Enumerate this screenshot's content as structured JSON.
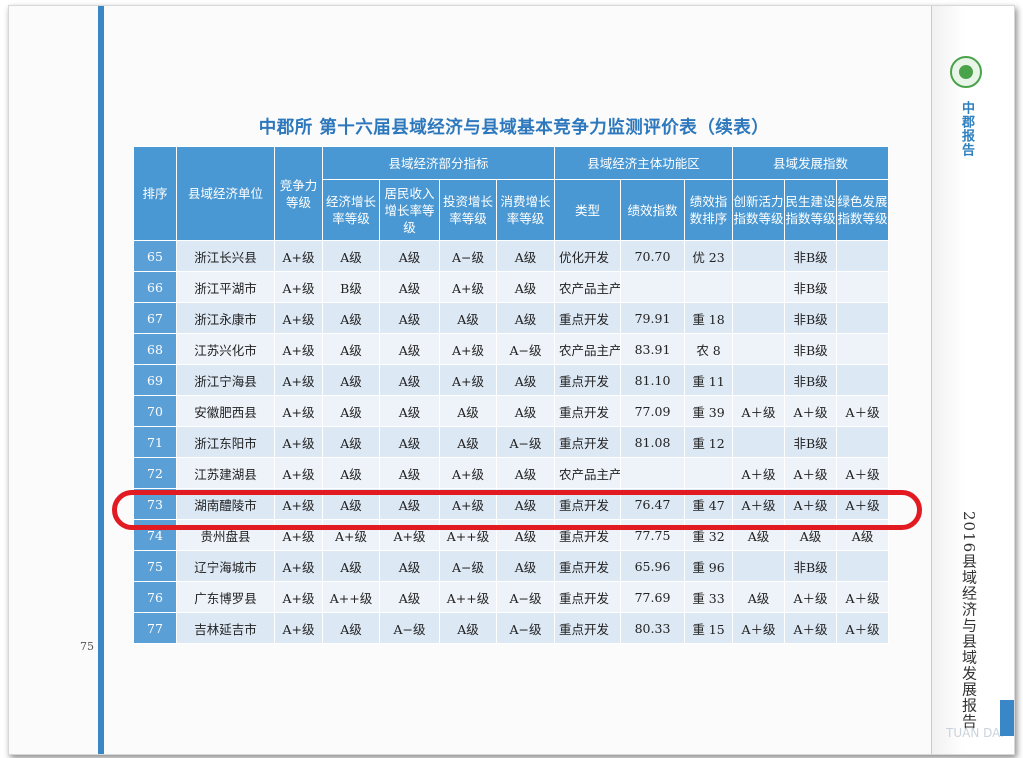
{
  "page_number": "75",
  "side_brand": "中郡报告",
  "side_title": "2016县域经济与县域发展报告",
  "watermark": "TUAN DAI",
  "title": "中郡所  第十六届县域经济与县域基本竞争力监测评价表（续表）",
  "headers": {
    "rank": "排序",
    "unit": "县域经济单位",
    "competitiveness": "竞争力等级",
    "group_economy": "县域经济部分指标",
    "group_function": "县域经济主体功能区",
    "group_development": "县域发展指数",
    "econ_growth": "经济增长率等级",
    "income_growth": "居民收入增长率等级",
    "invest_growth": "投资增长率等级",
    "consume_growth": "消费增长率等级",
    "type": "类型",
    "perf_index": "绩效指数",
    "perf_rank": "绩效指数排序",
    "innovation": "创新活力指数等级",
    "livelihood": "民生建设指数等级",
    "green": "绿色发展指数等级"
  },
  "rows": [
    {
      "rank": "65",
      "unit": "浙江长兴县",
      "comp": "A+级",
      "econ": "A级",
      "income": "A级",
      "invest": "A−级",
      "consume": "A级",
      "type": "优化开发",
      "perf": "70.70",
      "perf_rank": "优 23",
      "innov": "",
      "live": "非B级",
      "green": ""
    },
    {
      "rank": "66",
      "unit": "浙江平湖市",
      "comp": "A+级",
      "econ": "B级",
      "income": "A级",
      "invest": "A+级",
      "consume": "A级",
      "type": "农产品主产",
      "perf": "",
      "perf_rank": "",
      "innov": "",
      "live": "非B级",
      "green": ""
    },
    {
      "rank": "67",
      "unit": "浙江永康市",
      "comp": "A+级",
      "econ": "A级",
      "income": "A级",
      "invest": "A级",
      "consume": "A级",
      "type": "重点开发",
      "perf": "79.91",
      "perf_rank": "重 18",
      "innov": "",
      "live": "非B级",
      "green": ""
    },
    {
      "rank": "68",
      "unit": "江苏兴化市",
      "comp": "A+级",
      "econ": "A级",
      "income": "A级",
      "invest": "A+级",
      "consume": "A−级",
      "type": "农产品主产",
      "perf": "83.91",
      "perf_rank": "农 8",
      "innov": "",
      "live": "非B级",
      "green": ""
    },
    {
      "rank": "69",
      "unit": "浙江宁海县",
      "comp": "A+级",
      "econ": "A级",
      "income": "A级",
      "invest": "A+级",
      "consume": "A级",
      "type": "重点开发",
      "perf": "81.10",
      "perf_rank": "重 11",
      "innov": "",
      "live": "非B级",
      "green": ""
    },
    {
      "rank": "70",
      "unit": "安徽肥西县",
      "comp": "A+级",
      "econ": "A级",
      "income": "A级",
      "invest": "A级",
      "consume": "A级",
      "type": "重点开发",
      "perf": "77.09",
      "perf_rank": "重 39",
      "innov": "A＋级",
      "live": "A＋级",
      "green": "A＋级"
    },
    {
      "rank": "71",
      "unit": "浙江东阳市",
      "comp": "A+级",
      "econ": "A级",
      "income": "A级",
      "invest": "A级",
      "consume": "A−级",
      "type": "重点开发",
      "perf": "81.08",
      "perf_rank": "重 12",
      "innov": "",
      "live": "非B级",
      "green": ""
    },
    {
      "rank": "72",
      "unit": "江苏建湖县",
      "comp": "A+级",
      "econ": "A级",
      "income": "A级",
      "invest": "A+级",
      "consume": "A级",
      "type": "农产品主产",
      "perf": "",
      "perf_rank": "",
      "innov": "A＋级",
      "live": "A＋级",
      "green": "A＋级"
    },
    {
      "rank": "73",
      "unit": "湖南醴陵市",
      "comp": "A+级",
      "econ": "A级",
      "income": "A级",
      "invest": "A+级",
      "consume": "A级",
      "type": "重点开发",
      "perf": "76.47",
      "perf_rank": "重 47",
      "innov": "A＋级",
      "live": "A＋级",
      "green": "A＋级"
    },
    {
      "rank": "74",
      "unit": "贵州盘县",
      "comp": "A+级",
      "econ": "A+级",
      "income": "A+级",
      "invest": "A++级",
      "consume": "A级",
      "type": "重点开发",
      "perf": "77.75",
      "perf_rank": "重 32",
      "innov": "A级",
      "live": "A级",
      "green": "A级"
    },
    {
      "rank": "75",
      "unit": "辽宁海城市",
      "comp": "A+级",
      "econ": "A级",
      "income": "A级",
      "invest": "A−级",
      "consume": "A级",
      "type": "重点开发",
      "perf": "65.96",
      "perf_rank": "重 96",
      "innov": "",
      "live": "非B级",
      "green": ""
    },
    {
      "rank": "76",
      "unit": "广东博罗县",
      "comp": "A+级",
      "econ": "A++级",
      "income": "A级",
      "invest": "A++级",
      "consume": "A−级",
      "type": "重点开发",
      "perf": "77.69",
      "perf_rank": "重 33",
      "innov": "A级",
      "live": "A＋级",
      "green": "A＋级"
    },
    {
      "rank": "77",
      "unit": "吉林延吉市",
      "comp": "A+级",
      "econ": "A级",
      "income": "A−级",
      "invest": "A级",
      "consume": "A−级",
      "type": "重点开发",
      "perf": "80.33",
      "perf_rank": "重 15",
      "innov": "A＋级",
      "live": "A＋级",
      "green": "A＋级"
    }
  ],
  "colors": {
    "header_blue": "#4a98d3",
    "rank_blue": "#5a9fd6",
    "row_light": "#eef3f9",
    "row_dark": "#dde8f5",
    "title_blue": "#2d78bd",
    "highlight_red": "#e21b22"
  },
  "highlight_icon": "red-oval-highlight"
}
